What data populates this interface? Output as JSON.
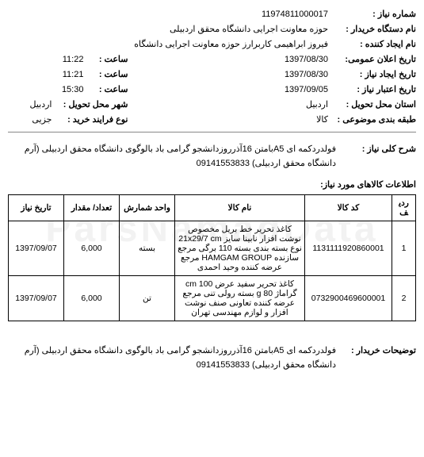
{
  "watermark": "ParsNamadData",
  "header": {
    "niyaz_no": {
      "label": "شماره نیاز :",
      "value": "11974811000017"
    },
    "buyer_org": {
      "label": "نام دستگاه خریدار :",
      "value": "حوزه معاونت اجرایی دانشگاه محقق اردبیلی"
    },
    "creator": {
      "label": "نام ایجاد کننده :",
      "value": "فیروز ابراهیمی کاربرارز حوزه معاونت اجرایی دانشگاه"
    },
    "public_date": {
      "label": "تاریخ اعلان عمومی:",
      "value": "1397/08/30",
      "time_label": "ساعت :",
      "time": "11:22"
    },
    "create_date": {
      "label": "تاریخ ایجاد نیاز :",
      "value": "1397/08/30",
      "time_label": "ساعت :",
      "time": "11:21"
    },
    "valid_date": {
      "label": "تاریخ اعتبار نیاز :",
      "value": "1397/09/05",
      "time_label": "ساعت :",
      "time": "15:30"
    },
    "delivery_state": {
      "label": "استان محل تحویل :",
      "value": "اردبیل",
      "city_label": "شهر محل تحویل :",
      "city": "اردبیل"
    },
    "subject_class": {
      "label": "طبقه بندی موضوعی :",
      "value": "کالا",
      "process_label": "نوع فرایند خرید :",
      "process": "جزیی"
    },
    "overall_desc": {
      "label": "شرح کلی نیاز :",
      "value": "فولدردکمه ای A5بامتن 16آذرروزدانشجو گرامی باد بالوگوی دانشگاه محقق اردبیلی (آرم دانشگاه محقق اردبیلی)  09141553833"
    }
  },
  "items_section_title": "اطلاعات کالاهای مورد نیاز:",
  "table": {
    "headers": {
      "idx": "ردیف",
      "code": "کد کالا",
      "name": "نام کالا",
      "unit": "واحد شمارش",
      "qty": "تعداد/ مقدار",
      "date": "تاریخ نیاز"
    },
    "rows": [
      {
        "idx": "1",
        "code": "1131111920860001",
        "name": "کاغذ تحریر خط بریل مخصوص نوشت افزار نابینا سایز 21x29/7 cm نوع بسته بندی بسته 110 برگی مرجع سازنده HAMGAM GROUP مرجع عرضه کننده وحید احمدی",
        "unit": "بسته",
        "qty": "6,000",
        "date": "1397/09/07"
      },
      {
        "idx": "2",
        "code": "0732900469600001",
        "name": "کاغذ تحریر سفید عرض 100 cm گراماژ 80 g بسته رولی تنی مرجع عرضه کننده تعاونی صنف نوشت افزار و لوازم مهندسی تهران",
        "unit": "تن",
        "qty": "6,000",
        "date": "1397/09/07"
      }
    ]
  },
  "buyer_notes": {
    "label": "توضیحات خریدار :",
    "value": "فولدردکمه ای A5بامتن 16آذرروزدانشجو گرامی باد بالوگوی دانشگاه محقق اردبیلی (آرم دانشگاه محقق اردبیلی)  09141553833"
  }
}
